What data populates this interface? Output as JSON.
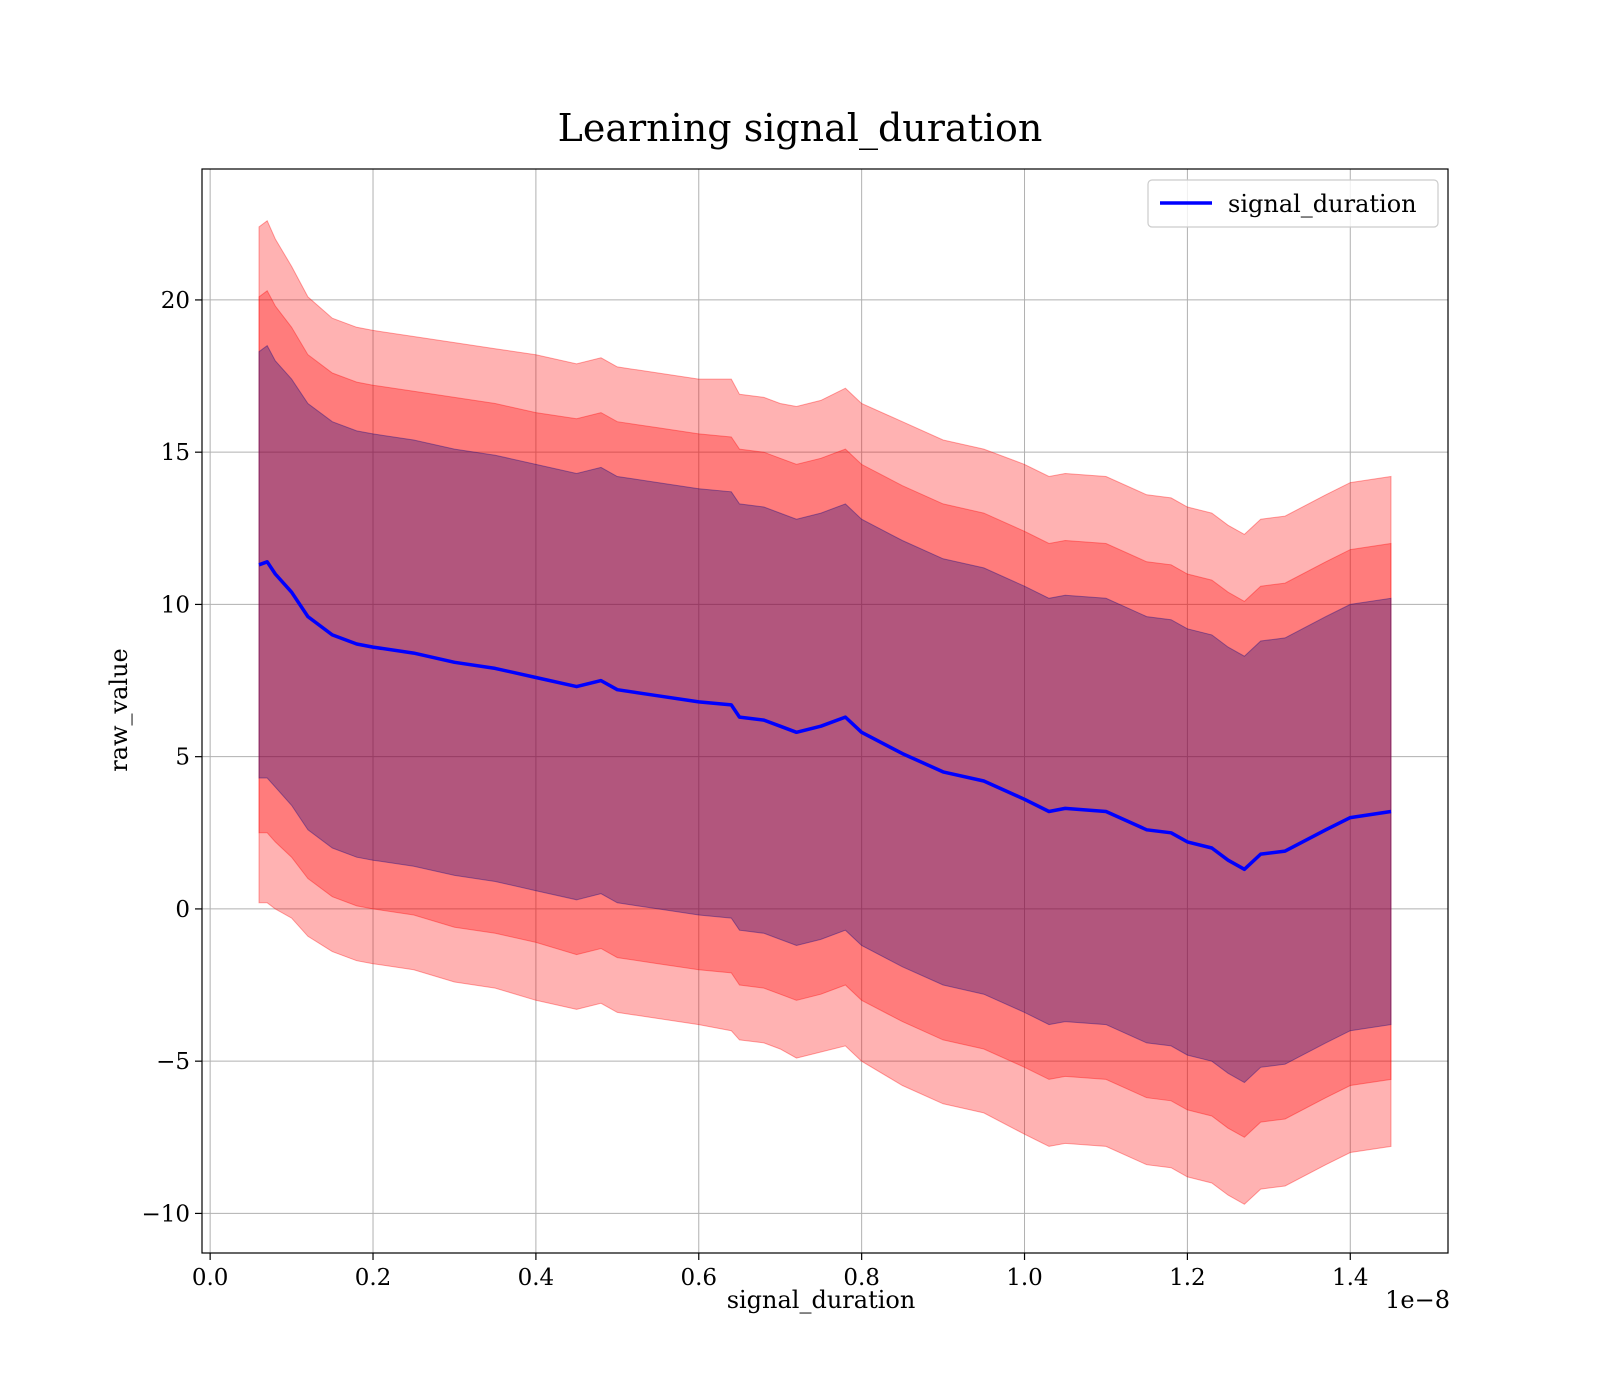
{
  "chart_data": {
    "type": "area",
    "title": "Learning signal_duration",
    "xlabel": "signal_duration",
    "ylabel": "raw_value",
    "x_offset_label": "1e−8",
    "xlim": [
      -0.01,
      1.52
    ],
    "ylim": [
      -11.3,
      24.3
    ],
    "xticks": [
      0.0,
      0.2,
      0.4,
      0.6,
      0.8,
      1.0,
      1.2,
      1.4
    ],
    "xtick_labels": [
      "0.0",
      "0.2",
      "0.4",
      "0.6",
      "0.8",
      "1.0",
      "1.2",
      "1.4"
    ],
    "yticks": [
      -10,
      -5,
      0,
      5,
      10,
      15,
      20
    ],
    "ytick_labels": [
      "−10",
      "−5",
      "0",
      "5",
      "10",
      "15",
      "20"
    ],
    "grid": true,
    "legend": {
      "position": "top-right",
      "entries": [
        "signal_duration"
      ]
    },
    "series": [
      {
        "name": "signal_duration",
        "color": "#0000ff",
        "x": [
          0.06,
          0.07,
          0.08,
          0.1,
          0.12,
          0.15,
          0.18,
          0.2,
          0.25,
          0.3,
          0.35,
          0.4,
          0.45,
          0.48,
          0.5,
          0.55,
          0.6,
          0.64,
          0.65,
          0.68,
          0.7,
          0.72,
          0.75,
          0.78,
          0.8,
          0.85,
          0.9,
          0.95,
          1.0,
          1.03,
          1.05,
          1.1,
          1.15,
          1.18,
          1.2,
          1.23,
          1.25,
          1.27,
          1.29,
          1.32,
          1.37,
          1.4,
          1.45
        ],
        "values": [
          11.3,
          11.4,
          11.0,
          10.4,
          9.6,
          9.0,
          8.7,
          8.6,
          8.4,
          8.1,
          7.9,
          7.6,
          7.3,
          7.5,
          7.2,
          7.0,
          6.8,
          6.7,
          6.3,
          6.2,
          6.0,
          5.8,
          6.0,
          6.3,
          5.8,
          5.1,
          4.5,
          4.2,
          3.6,
          3.2,
          3.3,
          3.2,
          2.6,
          2.5,
          2.2,
          2.0,
          1.6,
          1.3,
          1.8,
          1.9,
          2.6,
          3.0,
          3.2
        ]
      }
    ],
    "bands": [
      {
        "color": "#ff0000",
        "opacity": 0.3,
        "half_width": [
          11.1,
          11.2,
          11.0,
          10.7,
          10.5,
          10.4,
          10.4,
          10.4,
          10.4,
          10.5,
          10.5,
          10.6,
          10.6,
          10.6,
          10.6,
          10.6,
          10.6,
          10.7,
          10.6,
          10.6,
          10.6,
          10.7,
          10.7,
          10.8,
          10.8,
          10.9,
          10.9,
          10.9,
          11.0,
          11.0,
          11.0,
          11.0,
          11.0,
          11.0,
          11.0,
          11.0,
          11.0,
          11.0,
          11.0,
          11.0,
          11.0,
          11.0,
          11.0
        ]
      },
      {
        "color": "#ff0000",
        "opacity": 0.3,
        "half_width": [
          8.8,
          8.9,
          8.8,
          8.7,
          8.6,
          8.6,
          8.6,
          8.6,
          8.6,
          8.7,
          8.7,
          8.7,
          8.8,
          8.8,
          8.8,
          8.8,
          8.8,
          8.8,
          8.8,
          8.8,
          8.8,
          8.8,
          8.8,
          8.8,
          8.8,
          8.8,
          8.8,
          8.8,
          8.8,
          8.8,
          8.8,
          8.8,
          8.8,
          8.8,
          8.8,
          8.8,
          8.8,
          8.8,
          8.8,
          8.8,
          8.8,
          8.8,
          8.8
        ]
      },
      {
        "color": "#000080",
        "opacity": 0.3,
        "half_width": [
          7.0,
          7.1,
          7.0,
          7.0,
          7.0,
          7.0,
          7.0,
          7.0,
          7.0,
          7.0,
          7.0,
          7.0,
          7.0,
          7.0,
          7.0,
          7.0,
          7.0,
          7.0,
          7.0,
          7.0,
          7.0,
          7.0,
          7.0,
          7.0,
          7.0,
          7.0,
          7.0,
          7.0,
          7.0,
          7.0,
          7.0,
          7.0,
          7.0,
          7.0,
          7.0,
          7.0,
          7.0,
          7.0,
          7.0,
          7.0,
          7.0,
          7.0,
          7.0
        ]
      }
    ]
  }
}
